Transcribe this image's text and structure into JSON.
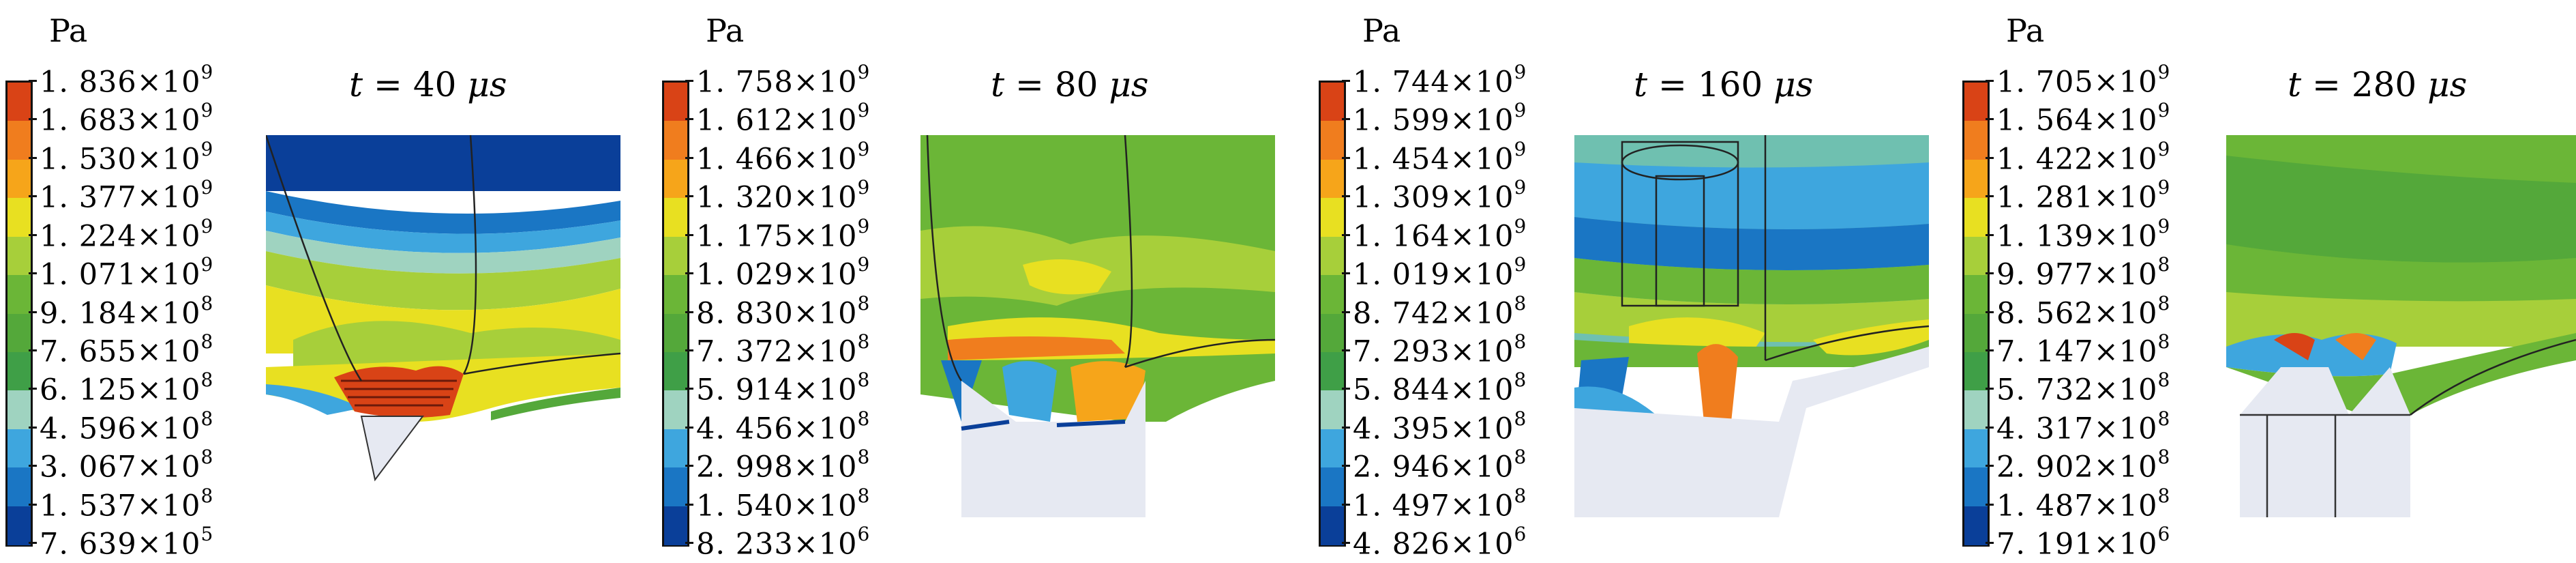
{
  "legend_colors": [
    "#d94316",
    "#f07d1e",
    "#f6a51a",
    "#e8e021",
    "#a7cf3a",
    "#6bb637",
    "#54a83a",
    "#3f9f47",
    "#9fd3c0",
    "#3ea6de",
    "#1a76c4",
    "#0a3f99"
  ],
  "panels": [
    {
      "unit": "Pa",
      "time": {
        "var": "t",
        "eq": "=",
        "value": "40",
        "unit": "μs"
      },
      "ticks": [
        {
          "m": "1. 836",
          "x": "×10",
          "e": "9"
        },
        {
          "m": "1. 683",
          "x": "×10",
          "e": "9"
        },
        {
          "m": "1. 530",
          "x": "×10",
          "e": "9"
        },
        {
          "m": "1. 377",
          "x": "×10",
          "e": "9"
        },
        {
          "m": "1. 224",
          "x": "×10",
          "e": "9"
        },
        {
          "m": "1. 071",
          "x": "×10",
          "e": "9"
        },
        {
          "m": "9. 184",
          "x": "×10",
          "e": "8"
        },
        {
          "m": "7. 655",
          "x": "×10",
          "e": "8"
        },
        {
          "m": "6. 125",
          "x": "×10",
          "e": "8"
        },
        {
          "m": "4. 596",
          "x": "×10",
          "e": "8"
        },
        {
          "m": "3. 067",
          "x": "×10",
          "e": "8"
        },
        {
          "m": "1. 537",
          "x": "×10",
          "e": "8"
        },
        {
          "m": "7. 639",
          "x": "×10",
          "e": "5"
        }
      ]
    },
    {
      "unit": "Pa",
      "time": {
        "var": "t",
        "eq": "=",
        "value": "80",
        "unit": "μs"
      },
      "ticks": [
        {
          "m": "1. 758",
          "x": "×10",
          "e": "9"
        },
        {
          "m": "1. 612",
          "x": "×10",
          "e": "9"
        },
        {
          "m": "1. 466",
          "x": "×10",
          "e": "9"
        },
        {
          "m": "1. 320",
          "x": "×10",
          "e": "9"
        },
        {
          "m": "1. 175",
          "x": "×10",
          "e": "9"
        },
        {
          "m": "1. 029",
          "x": "×10",
          "e": "9"
        },
        {
          "m": "8. 830",
          "x": "×10",
          "e": "8"
        },
        {
          "m": "7. 372",
          "x": "×10",
          "e": "8"
        },
        {
          "m": "5. 914",
          "x": "×10",
          "e": "8"
        },
        {
          "m": "4. 456",
          "x": "×10",
          "e": "8"
        },
        {
          "m": "2. 998",
          "x": "×10",
          "e": "8"
        },
        {
          "m": "1. 540",
          "x": "×10",
          "e": "8"
        },
        {
          "m": "8. 233",
          "x": "×10",
          "e": "6"
        }
      ]
    },
    {
      "unit": "Pa",
      "time": {
        "var": "t",
        "eq": "=",
        "value": "160",
        "unit": "μs"
      },
      "ticks": [
        {
          "m": "1. 744",
          "x": "×10",
          "e": "9"
        },
        {
          "m": "1. 599",
          "x": "×10",
          "e": "9"
        },
        {
          "m": "1. 454",
          "x": "×10",
          "e": "9"
        },
        {
          "m": "1. 309",
          "x": "×10",
          "e": "9"
        },
        {
          "m": "1. 164",
          "x": "×10",
          "e": "9"
        },
        {
          "m": "1. 019",
          "x": "×10",
          "e": "9"
        },
        {
          "m": "8. 742",
          "x": "×10",
          "e": "8"
        },
        {
          "m": "7. 293",
          "x": "×10",
          "e": "8"
        },
        {
          "m": "5. 844",
          "x": "×10",
          "e": "8"
        },
        {
          "m": "4. 395",
          "x": "×10",
          "e": "8"
        },
        {
          "m": "2. 946",
          "x": "×10",
          "e": "8"
        },
        {
          "m": "1. 497",
          "x": "×10",
          "e": "8"
        },
        {
          "m": "4. 826",
          "x": "×10",
          "e": "6"
        }
      ]
    },
    {
      "unit": "Pa",
      "time": {
        "var": "t",
        "eq": "=",
        "value": "280",
        "unit": "μs"
      },
      "ticks": [
        {
          "m": "1. 705",
          "x": "×10",
          "e": "9"
        },
        {
          "m": "1. 564",
          "x": "×10",
          "e": "9"
        },
        {
          "m": "1. 422",
          "x": "×10",
          "e": "9"
        },
        {
          "m": "1. 281",
          "x": "×10",
          "e": "9"
        },
        {
          "m": "1. 139",
          "x": "×10",
          "e": "9"
        },
        {
          "m": "9. 977",
          "x": "×10",
          "e": "8"
        },
        {
          "m": "8. 562",
          "x": "×10",
          "e": "8"
        },
        {
          "m": "7. 147",
          "x": "×10",
          "e": "8"
        },
        {
          "m": "5. 732",
          "x": "×10",
          "e": "8"
        },
        {
          "m": "4. 317",
          "x": "×10",
          "e": "8"
        },
        {
          "m": "2. 902",
          "x": "×10",
          "e": "8"
        },
        {
          "m": "1. 487",
          "x": "×10",
          "e": "8"
        },
        {
          "m": "7. 191",
          "x": "×10",
          "e": "6"
        }
      ]
    }
  ]
}
